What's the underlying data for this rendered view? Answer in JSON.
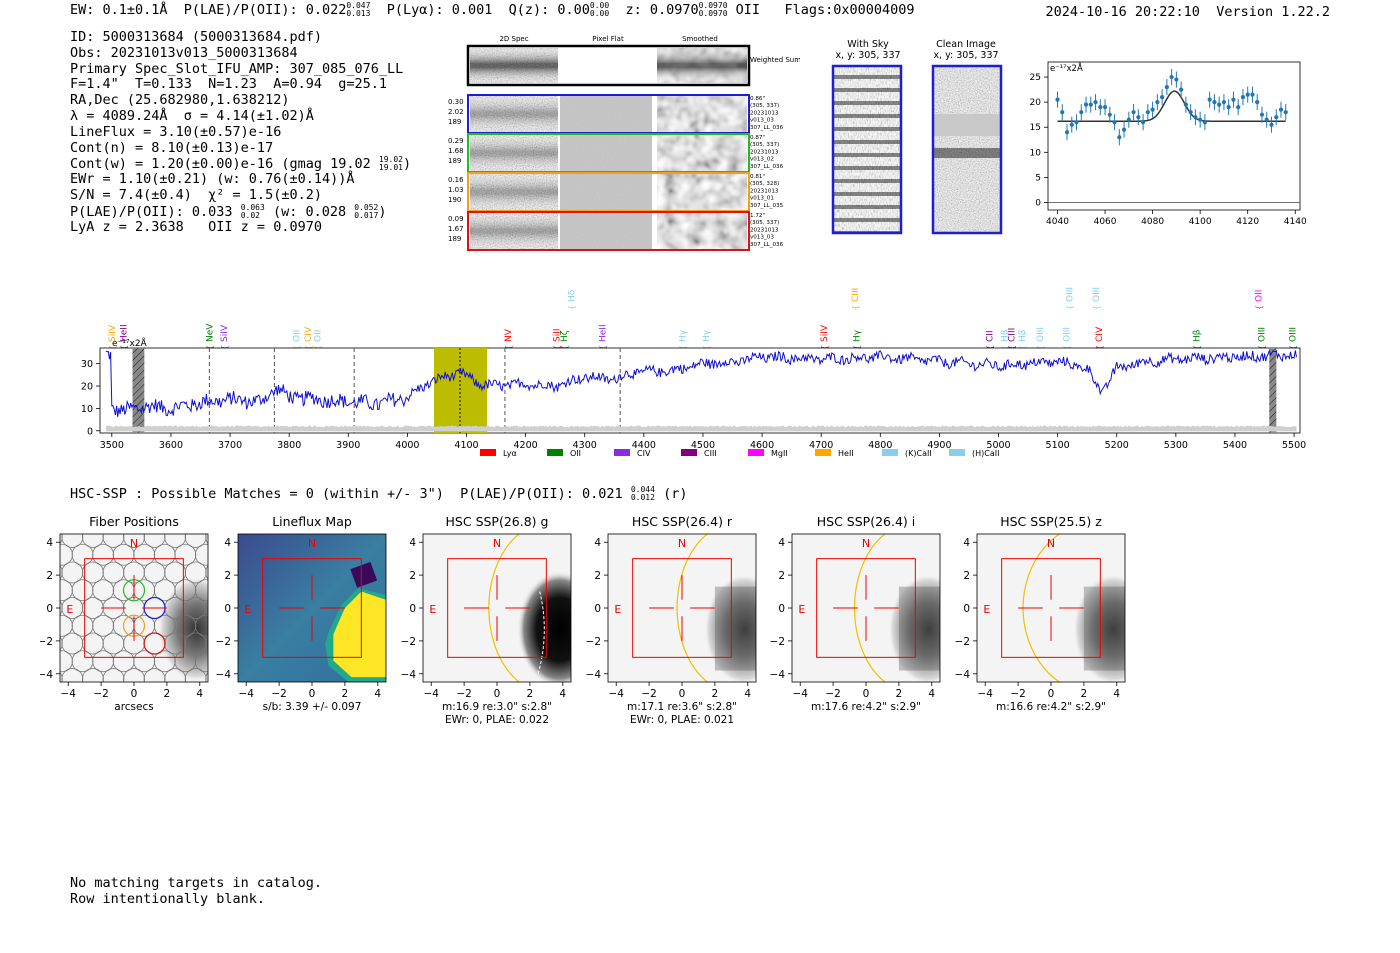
{
  "header": {
    "line": "EW: 0.1±0.1Å  P(LAE)/P(OII): 0.022",
    "plae_sup": "0.047",
    "plae_sub": "0.013",
    "plya": "P(Lyα): 0.001",
    "qz": "Q(z): 0.00",
    "qz_sup": "0.00",
    "qz_sub": "0.00",
    "z": "z: 0.0970",
    "z_sup": "0.0970",
    "z_sub": "0.0970",
    "z_type": "OII",
    "flags": "Flags:0x00004009"
  },
  "stamp": {
    "datetime": "2024-10-16 20:22:10",
    "version": "Version 1.22.2"
  },
  "info": {
    "id": "ID: 5000313684 (5000313684.pdf)",
    "obs": "Obs: 20231013v013_5000313684",
    "primary": "Primary Spec_Slot_IFU_AMP: 307_085_076_LL",
    "fit": "F=1.4\"  T=0.133  N=1.23  A=0.94  g=25.1",
    "radec": "RA,Dec (25.682980,1.638212)",
    "lambda": "λ = 4089.24Å  σ = 4.14(±1.02)Å",
    "lineflux": "LineFlux = 3.10(±0.57)e-16",
    "contn": "Cont(n) = 8.10(±0.13)e-17",
    "contw": "Cont(w) = 1.20(±0.00)e-16 (gmag 19.02",
    "contw_sup": "19.02",
    "contw_sub": "19.01",
    "ewr": "EWr = 1.10(±0.21) (w: 0.76(±0.14))Å",
    "sn": "S/N = 7.4(±0.4)  χ² = 1.5(±0.2)",
    "plae": "P(LAE)/P(OII): 0.033",
    "plae_sup": "0.063",
    "plae_sub": "0.02",
    "plae_w": "(w: 0.028",
    "plae_w_sup": "0.052",
    "plae_w_sub": "0.017",
    "lyaz": "LyA z = 2.3638   OII z = 0.0970"
  },
  "cutouts": {
    "col_titles": [
      "2D Spec",
      "Pixel Flat",
      "Smoothed"
    ],
    "weighted_sum": "Weighted Sum",
    "rows": [
      {
        "left": [
          "0.30",
          "2.02",
          "189"
        ],
        "right": [
          "0.86\"",
          "(305, 337)",
          "20231013",
          "v013_03",
          "307_LL_036"
        ],
        "color": "#1f1fd0"
      },
      {
        "left": [
          "0.29",
          "1.68",
          "189"
        ],
        "right": [
          "0.87\"",
          "(305, 337)",
          "20231013",
          "v013_02",
          "307_LL_036"
        ],
        "color": "#22bb22"
      },
      {
        "left": [
          "0.16",
          "1.03",
          "190"
        ],
        "right": [
          "0.81\"",
          "(305, 328)",
          "20231013",
          "v013_01",
          "307_LL_035"
        ],
        "color": "#f0a020"
      },
      {
        "left": [
          "0.09",
          "1.67",
          "189"
        ],
        "right": [
          "1.72\"",
          "(305, 337)",
          "20231013",
          "v013_03",
          "307_LL_036"
        ],
        "color": "#dd1111"
      }
    ]
  },
  "sky_panels": {
    "with_sky": {
      "title": "With Sky",
      "coords": "x, y: 305, 337"
    },
    "clean": {
      "title": "Clean Image",
      "coords": "x, y: 305, 337"
    }
  },
  "zoom_chart_data": {
    "type": "scatter",
    "ylabel": "e⁻¹⁷x2Å",
    "xlim": [
      4036,
      4142
    ],
    "ylim": [
      -1.5,
      28
    ],
    "xticks": [
      4040,
      4060,
      4080,
      4100,
      4120,
      4140
    ],
    "yticks": [
      0,
      5,
      10,
      15,
      20,
      25
    ],
    "x": [
      4040,
      4042,
      4044,
      4046,
      4048,
      4050,
      4052,
      4054,
      4056,
      4058,
      4060,
      4062,
      4064,
      4066,
      4068,
      4070,
      4072,
      4074,
      4076,
      4078,
      4080,
      4082,
      4084,
      4086,
      4088,
      4090,
      4092,
      4094,
      4096,
      4098,
      4100,
      4102,
      4104,
      4106,
      4108,
      4110,
      4112,
      4114,
      4116,
      4118,
      4120,
      4122,
      4124,
      4126,
      4128,
      4130,
      4132,
      4134,
      4136
    ],
    "y": [
      20.5,
      18,
      14,
      15.5,
      16,
      18,
      19.5,
      19.5,
      20,
      19,
      19,
      17.5,
      16,
      13,
      14.5,
      16.5,
      18,
      17,
      16,
      18,
      18.5,
      20,
      21,
      23,
      25,
      24.5,
      22.5,
      19.5,
      18,
      17,
      16.5,
      16,
      20.5,
      20,
      19.5,
      20,
      19,
      20.5,
      19,
      21,
      21.5,
      21.5,
      20,
      17.5,
      16.5,
      15.5,
      17,
      18.5,
      18
    ],
    "err": [
      1.6,
      1.6,
      1.6,
      1.6,
      1.6,
      1.6,
      1.6,
      1.6,
      1.6,
      1.6,
      1.6,
      1.6,
      1.6,
      1.6,
      1.6,
      1.6,
      1.6,
      1.6,
      1.6,
      1.6,
      1.6,
      1.6,
      1.6,
      1.6,
      1.6,
      1.6,
      1.6,
      1.6,
      1.6,
      1.6,
      1.6,
      1.6,
      1.6,
      1.6,
      1.6,
      1.6,
      1.6,
      1.6,
      1.6,
      1.6,
      1.6,
      1.6,
      1.6,
      1.6,
      1.6,
      1.6,
      1.6,
      1.6,
      1.6
    ],
    "model": {
      "continuum": 16.2,
      "amplitude": 6.0,
      "center": 4089.2,
      "sigma": 4.14
    }
  },
  "chart_data": {
    "type": "line",
    "title": "",
    "ylabel": "e⁻¹⁷x2Å",
    "xlim": [
      3480,
      5510
    ],
    "ylim": [
      -1,
      37
    ],
    "xticks": [
      3500,
      3600,
      3700,
      3800,
      3900,
      4000,
      4100,
      4200,
      4300,
      4400,
      4500,
      4600,
      4700,
      4800,
      4900,
      5000,
      5100,
      5200,
      5300,
      5400,
      5500
    ],
    "yticks": [
      0,
      10,
      20,
      30
    ],
    "anchors_x": [
      3500,
      3520,
      3560,
      3600,
      3640,
      3660,
      3700,
      3750,
      3780,
      3800,
      3850,
      3900,
      3950,
      4000,
      4040,
      4089,
      4120,
      4150,
      4200,
      4250,
      4300,
      4350,
      4380,
      4450,
      4500,
      4560,
      4600,
      4700,
      4800,
      4900,
      5000,
      5050,
      5100,
      5150,
      5175,
      5200,
      5250,
      5300,
      5400,
      5500
    ],
    "anchors_y": [
      10,
      9,
      11,
      10,
      12,
      13,
      14,
      13,
      19,
      15,
      14,
      13,
      12,
      15,
      22,
      26,
      21,
      20,
      21,
      20,
      24,
      23,
      26,
      27,
      30,
      31,
      33,
      32,
      33,
      31,
      29,
      30,
      31,
      28,
      17,
      28,
      31,
      32,
      33,
      34
    ],
    "highlight_band": [
      4045,
      4135
    ],
    "line_center": 4089,
    "dashed_lines": [
      3665,
      3775,
      3910,
      4165,
      4360
    ],
    "masked_bands": [
      [
        3535,
        3555
      ],
      [
        5458,
        5470
      ]
    ],
    "line_labels": [
      {
        "w": 3500,
        "t": "SiIV",
        "c": "#ffa500",
        "r": 1
      },
      {
        "w": 3520,
        "t": "HeII",
        "c": "#800080",
        "r": 1
      },
      {
        "w": 3665,
        "t": "NeV",
        "c": "#008000",
        "r": 1
      },
      {
        "w": 3690,
        "t": "SiIV",
        "c": "#8a2be2",
        "r": 1
      },
      {
        "w": 3812,
        "t": "OII",
        "c": "#87ceeb",
        "r": 1
      },
      {
        "w": 3832,
        "t": "CIV",
        "c": "#ffa500",
        "r": 1
      },
      {
        "w": 3848,
        "t": "OII",
        "c": "#87ceeb",
        "r": 1
      },
      {
        "w": 4170,
        "t": "NV",
        "c": "#ff0000",
        "r": 1
      },
      {
        "w": 4252,
        "t": "SiII",
        "c": "#ff0000",
        "r": 1
      },
      {
        "w": 4265,
        "t": "Hζ",
        "c": "#008000",
        "r": 1
      },
      {
        "w": 4278,
        "t": "Hδ",
        "c": "#87ceeb",
        "r": 2
      },
      {
        "w": 4330,
        "t": "HeII",
        "c": "#8a2be2",
        "r": 1
      },
      {
        "w": 4465,
        "t": "Hγ",
        "c": "#87ceeb",
        "r": 1
      },
      {
        "w": 4505,
        "t": "Hγ",
        "c": "#87ceeb",
        "r": 1
      },
      {
        "w": 4705,
        "t": "SiIV",
        "c": "#ff0000",
        "r": 1
      },
      {
        "w": 4757,
        "t": "CIII",
        "c": "#ffa500",
        "r": 2
      },
      {
        "w": 4760,
        "t": "Hγ",
        "c": "#008000",
        "r": 1
      },
      {
        "w": 4985,
        "t": "CII",
        "c": "#800080",
        "r": 1
      },
      {
        "w": 5010,
        "t": "Hβ",
        "c": "#87ceeb",
        "r": 1
      },
      {
        "w": 5022,
        "t": "CIII",
        "c": "#800080",
        "r": 1
      },
      {
        "w": 5040,
        "t": "Hβ",
        "c": "#87ceeb",
        "r": 1
      },
      {
        "w": 5070,
        "t": "OIII",
        "c": "#87ceeb",
        "r": 1
      },
      {
        "w": 5120,
        "t": "OIII",
        "c": "#87ceeb",
        "r": 2
      },
      {
        "w": 5115,
        "t": "OIII",
        "c": "#87ceeb",
        "r": 1
      },
      {
        "w": 5165,
        "t": "OIII",
        "c": "#87ceeb",
        "r": 2
      },
      {
        "w": 5170,
        "t": "CIV",
        "c": "#ff0000",
        "r": 1
      },
      {
        "w": 5335,
        "t": "Hβ",
        "c": "#008000",
        "r": 1
      },
      {
        "w": 5440,
        "t": "OII",
        "c": "#ff00ff",
        "r": 2
      },
      {
        "w": 5445,
        "t": "OIII",
        "c": "#008000",
        "r": 1
      },
      {
        "w": 5497,
        "t": "OIII",
        "c": "#008000",
        "r": 1
      }
    ],
    "legend": [
      {
        "label": "Lyα",
        "color": "#ff0000"
      },
      {
        "label": "OII",
        "color": "#008000"
      },
      {
        "label": "CIV",
        "color": "#8a2be2"
      },
      {
        "label": "CIII",
        "color": "#800080"
      },
      {
        "label": "MgII",
        "color": "#ff00ff"
      },
      {
        "label": "HeII",
        "color": "#ffa500"
      },
      {
        "label": "(K)CaII",
        "color": "#87ceeb"
      },
      {
        "label": "(H)CaII",
        "color": "#87ceeb"
      }
    ]
  },
  "hsc": {
    "summary": "HSC-SSP : Possible Matches = 0 (within +/- 3\")  P(LAE)/P(OII): 0.021",
    "summary_sup": "0.044",
    "summary_sub": "0.012",
    "summary_band": "(r)",
    "ticks": [
      -4,
      -2,
      0,
      2,
      4
    ],
    "panels": [
      {
        "title": "Fiber Positions",
        "xlabel": "arcsecs",
        "note2": "",
        "n": "N",
        "e": "E"
      },
      {
        "title": "Lineflux Map",
        "xlabel": "s/b: 3.39 +/- 0.097",
        "note2": "",
        "n": "N",
        "e": "E"
      },
      {
        "title": "HSC SSP(26.8) g",
        "xlabel": "m:16.9  re:3.0\"  s:2.8\"",
        "note2": "EWr: 0, PLAE: 0.022",
        "n": "N",
        "e": "E"
      },
      {
        "title": "HSC SSP(26.4) r",
        "xlabel": "m:17.1  re:3.6\"  s:2.8\"",
        "note2": "EWr: 0, PLAE: 0.021",
        "n": "N",
        "e": "E"
      },
      {
        "title": "HSC SSP(26.4) i",
        "xlabel": "m:17.6  re:4.2\"  s:2.9\"",
        "note2": "",
        "n": "N",
        "e": "E"
      },
      {
        "title": "HSC SSP(25.5) z",
        "xlabel": "m:16.6  re:4.2\"  s:2.9\"",
        "note2": "",
        "n": "N",
        "e": "E"
      }
    ]
  },
  "footer": {
    "line1": "No matching targets in catalog.",
    "line2": "Row intentionally blank."
  }
}
